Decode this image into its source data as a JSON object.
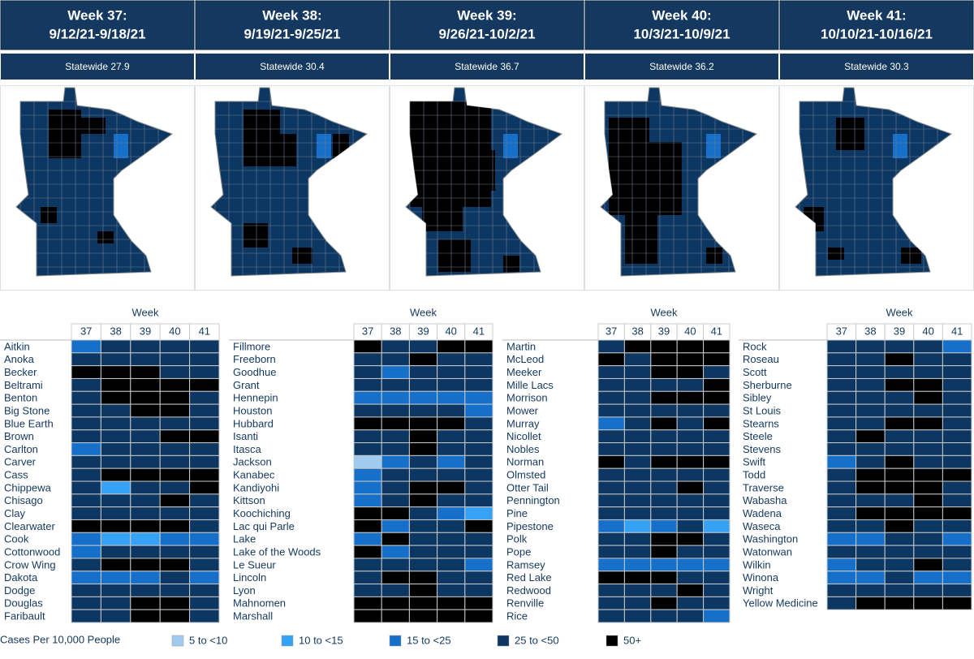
{
  "weeks": [
    {
      "title": "Week 37:",
      "dates": "9/12/21-9/18/21",
      "statewide": "Statewide 27.9"
    },
    {
      "title": "Week 38:",
      "dates": "9/19/21-9/25/21",
      "statewide": "Statewide 30.4"
    },
    {
      "title": "Week 39:",
      "dates": "9/26/21-10/2/21",
      "statewide": "Statewide 36.7"
    },
    {
      "title": "Week 40:",
      "dates": "10/3/21-10/9/21",
      "statewide": "Statewide 36.2"
    },
    {
      "title": "Week 41:",
      "dates": "10/10/21-10/16/21",
      "statewide": "Statewide 30.3"
    }
  ],
  "table": {
    "week_label": "Week",
    "week_numbers": [
      "37",
      "38",
      "39",
      "40",
      "41"
    ],
    "groups": [
      {
        "counties": [
          "Aitkin",
          "Anoka",
          "Becker",
          "Beltrami",
          "Benton",
          "Big Stone",
          "Blue Earth",
          "Brown",
          "Carlton",
          "Carver",
          "Cass",
          "Chippewa",
          "Chisago",
          "Clay",
          "Clearwater",
          "Cook",
          "Cottonwood",
          "Crow Wing",
          "Dakota",
          "Dodge",
          "Douglas",
          "Faribault"
        ],
        "levels": [
          [
            2,
            3,
            3,
            3,
            3
          ],
          [
            3,
            3,
            3,
            3,
            3
          ],
          [
            4,
            4,
            4,
            3,
            3
          ],
          [
            3,
            4,
            4,
            4,
            4
          ],
          [
            3,
            4,
            4,
            4,
            3
          ],
          [
            3,
            3,
            4,
            4,
            3
          ],
          [
            3,
            3,
            3,
            3,
            3
          ],
          [
            3,
            3,
            3,
            4,
            4
          ],
          [
            2,
            3,
            3,
            3,
            3
          ],
          [
            3,
            3,
            3,
            3,
            3
          ],
          [
            3,
            4,
            4,
            4,
            4
          ],
          [
            3,
            1,
            3,
            3,
            4
          ],
          [
            3,
            3,
            3,
            4,
            3
          ],
          [
            3,
            3,
            3,
            3,
            3
          ],
          [
            4,
            4,
            4,
            4,
            3
          ],
          [
            2,
            1,
            1,
            2,
            2
          ],
          [
            2,
            3,
            3,
            3,
            3
          ],
          [
            3,
            4,
            4,
            4,
            3
          ],
          [
            2,
            2,
            2,
            3,
            2
          ],
          [
            3,
            3,
            3,
            3,
            3
          ],
          [
            3,
            3,
            4,
            4,
            3
          ],
          [
            3,
            3,
            4,
            4,
            3
          ]
        ]
      },
      {
        "counties": [
          "Fillmore",
          "Freeborn",
          "Goodhue",
          "Grant",
          "Hennepin",
          "Houston",
          "Hubbard",
          "Isanti",
          "Itasca",
          "Jackson",
          "Kanabec",
          "Kandiyohi",
          "Kittson",
          "Koochiching",
          "Lac qui Parle",
          "Lake",
          "Lake of the Woods",
          "Le Sueur",
          "Lincoln",
          "Lyon",
          "Mahnomen",
          "Marshall"
        ],
        "levels": [
          [
            4,
            3,
            3,
            4,
            4
          ],
          [
            3,
            3,
            4,
            3,
            3
          ],
          [
            3,
            2,
            3,
            3,
            3
          ],
          [
            3,
            3,
            3,
            3,
            3
          ],
          [
            2,
            2,
            2,
            2,
            2
          ],
          [
            3,
            3,
            3,
            3,
            2
          ],
          [
            4,
            4,
            4,
            4,
            3
          ],
          [
            3,
            3,
            4,
            3,
            3
          ],
          [
            3,
            3,
            4,
            3,
            3
          ],
          [
            0,
            2,
            3,
            2,
            3
          ],
          [
            2,
            3,
            3,
            3,
            3
          ],
          [
            2,
            3,
            4,
            4,
            3
          ],
          [
            2,
            3,
            4,
            3,
            3
          ],
          [
            4,
            4,
            3,
            2,
            1
          ],
          [
            4,
            2,
            3,
            3,
            4
          ],
          [
            2,
            4,
            3,
            3,
            3
          ],
          [
            4,
            2,
            3,
            3,
            3
          ],
          [
            3,
            3,
            3,
            3,
            2
          ],
          [
            3,
            4,
            4,
            3,
            3
          ],
          [
            3,
            3,
            4,
            3,
            3
          ],
          [
            4,
            4,
            4,
            4,
            4
          ],
          [
            4,
            4,
            4,
            4,
            4
          ]
        ]
      },
      {
        "counties": [
          "Martin",
          "McLeod",
          "Meeker",
          "Mille Lacs",
          "Morrison",
          "Mower",
          "Murray",
          "Nicollet",
          "Nobles",
          "Norman",
          "Olmsted",
          "Otter Tail",
          "Pennington",
          "Pine",
          "Pipestone",
          "Polk",
          "Pope",
          "Ramsey",
          "Red Lake",
          "Redwood",
          "Renville",
          "Rice"
        ],
        "levels": [
          [
            3,
            4,
            4,
            4,
            4
          ],
          [
            4,
            3,
            4,
            4,
            4
          ],
          [
            3,
            3,
            4,
            4,
            3
          ],
          [
            3,
            3,
            3,
            3,
            4
          ],
          [
            3,
            3,
            4,
            4,
            4
          ],
          [
            3,
            3,
            3,
            3,
            3
          ],
          [
            2,
            3,
            4,
            3,
            4
          ],
          [
            3,
            3,
            3,
            3,
            3
          ],
          [
            3,
            3,
            3,
            3,
            3
          ],
          [
            4,
            3,
            4,
            4,
            4
          ],
          [
            3,
            3,
            3,
            3,
            3
          ],
          [
            3,
            3,
            3,
            4,
            3
          ],
          [
            3,
            3,
            3,
            3,
            3
          ],
          [
            3,
            3,
            3,
            3,
            3
          ],
          [
            2,
            1,
            2,
            3,
            1
          ],
          [
            3,
            3,
            4,
            4,
            3
          ],
          [
            3,
            3,
            4,
            3,
            3
          ],
          [
            2,
            2,
            2,
            2,
            2
          ],
          [
            4,
            4,
            4,
            3,
            3
          ],
          [
            3,
            3,
            3,
            4,
            3
          ],
          [
            3,
            3,
            4,
            3,
            3
          ],
          [
            3,
            3,
            3,
            3,
            2
          ]
        ]
      },
      {
        "counties": [
          "Rock",
          "Roseau",
          "Scott",
          "Sherburne",
          "Sibley",
          "St Louis",
          "Stearns",
          "Steele",
          "Stevens",
          "Swift",
          "Todd",
          "Traverse",
          "Wabasha",
          "Wadena",
          "Waseca",
          "Washington",
          "Watonwan",
          "Wilkin",
          "Winona",
          "Wright",
          "Yellow Medicine"
        ],
        "levels": [
          [
            3,
            3,
            3,
            3,
            2
          ],
          [
            3,
            3,
            4,
            3,
            3
          ],
          [
            3,
            3,
            3,
            3,
            3
          ],
          [
            3,
            3,
            4,
            4,
            3
          ],
          [
            3,
            3,
            3,
            4,
            3
          ],
          [
            3,
            3,
            3,
            3,
            3
          ],
          [
            3,
            3,
            4,
            4,
            3
          ],
          [
            3,
            4,
            3,
            3,
            3
          ],
          [
            3,
            3,
            3,
            3,
            3
          ],
          [
            2,
            3,
            4,
            3,
            3
          ],
          [
            3,
            4,
            4,
            4,
            4
          ],
          [
            3,
            4,
            4,
            4,
            3
          ],
          [
            3,
            3,
            3,
            4,
            3
          ],
          [
            3,
            4,
            4,
            4,
            4
          ],
          [
            3,
            3,
            4,
            3,
            3
          ],
          [
            2,
            2,
            3,
            3,
            2
          ],
          [
            3,
            3,
            3,
            3,
            3
          ],
          [
            2,
            3,
            3,
            4,
            3
          ],
          [
            2,
            2,
            3,
            2,
            2
          ],
          [
            3,
            3,
            3,
            3,
            3
          ],
          [
            3,
            4,
            4,
            4,
            4
          ]
        ]
      }
    ]
  },
  "legend": {
    "title": "Cases Per 10,000 People",
    "items": [
      {
        "label": "5 to <10",
        "color": "#9fcbf0"
      },
      {
        "label": "10 to <15",
        "color": "#36a2f5"
      },
      {
        "label": "15  to <25",
        "color": "#1670c9"
      },
      {
        "label": "25 to <50",
        "color": "#0c3763"
      },
      {
        "label": "50+",
        "color": "#000000"
      }
    ]
  }
}
